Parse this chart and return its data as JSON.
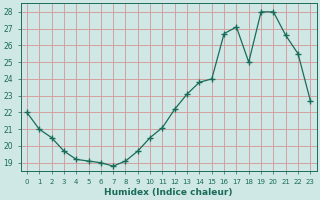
{
  "x": [
    0,
    1,
    2,
    3,
    4,
    5,
    6,
    7,
    8,
    9,
    10,
    11,
    12,
    13,
    14,
    15,
    16,
    17,
    18,
    19,
    20,
    21,
    22,
    23
  ],
  "y": [
    22.0,
    21.0,
    20.5,
    19.7,
    19.2,
    19.1,
    19.0,
    18.8,
    19.1,
    19.7,
    20.5,
    21.1,
    22.2,
    23.1,
    23.8,
    24.0,
    26.7,
    27.1,
    25.0,
    28.0,
    28.0,
    26.6,
    25.5,
    22.7
  ],
  "line_color": "#1a6b5a",
  "marker": "+",
  "marker_size": 4,
  "bg_color": "#cfe8e5",
  "grid_color": "#d4a0a0",
  "tick_color": "#1a6b5a",
  "xlabel": "Humidex (Indice chaleur)",
  "ylabel_ticks": [
    19,
    20,
    21,
    22,
    23,
    24,
    25,
    26,
    27,
    28
  ],
  "xlim": [
    -0.5,
    23.5
  ],
  "ylim": [
    18.5,
    28.5
  ],
  "xticks": [
    0,
    1,
    2,
    3,
    4,
    5,
    6,
    7,
    8,
    9,
    10,
    11,
    12,
    13,
    14,
    15,
    16,
    17,
    18,
    19,
    20,
    21,
    22,
    23
  ]
}
